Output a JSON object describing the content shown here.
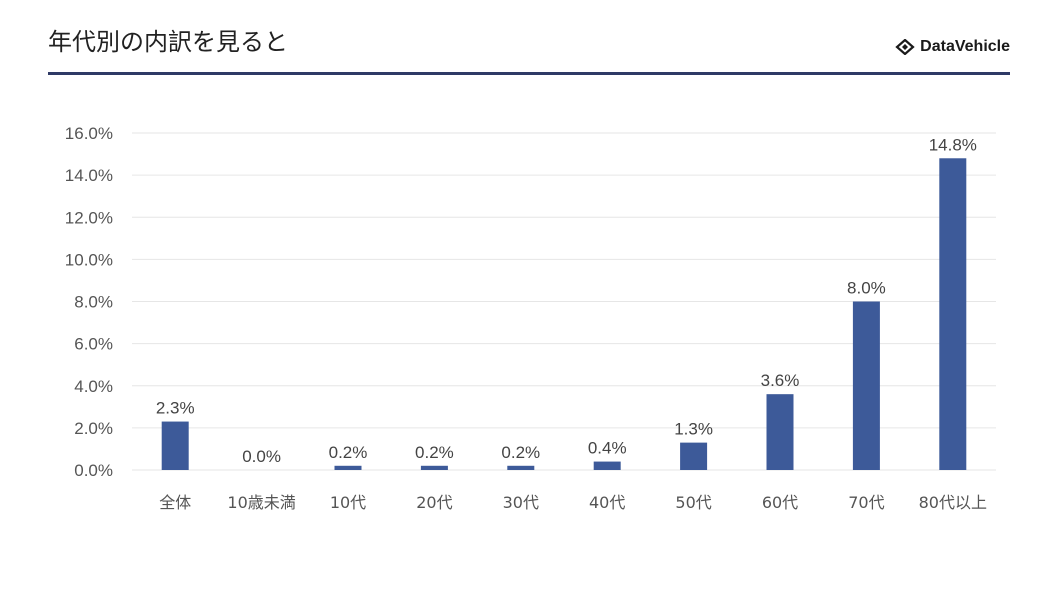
{
  "header": {
    "title": "年代別の内訳を見ると",
    "brand_name": "DataVehicle",
    "brand_icon": "diamond-logo-icon",
    "accent_color": "#2f3a66"
  },
  "chart_data": {
    "type": "bar",
    "title": "",
    "xlabel": "",
    "ylabel": "",
    "categories": [
      "全体",
      "10歳未満",
      "10代",
      "20代",
      "30代",
      "40代",
      "50代",
      "60代",
      "70代",
      "80代以上"
    ],
    "values": [
      2.3,
      0.0,
      0.2,
      0.2,
      0.2,
      0.4,
      1.3,
      3.6,
      8.0,
      14.8
    ],
    "value_labels": [
      "2.3%",
      "0.0%",
      "0.2%",
      "0.2%",
      "0.2%",
      "0.4%",
      "1.3%",
      "3.6%",
      "8.0%",
      "14.8%"
    ],
    "y_ticks": [
      0,
      2,
      4,
      6,
      8,
      10,
      12,
      14,
      16
    ],
    "y_tick_labels": [
      "0.0%",
      "2.0%",
      "4.0%",
      "6.0%",
      "8.0%",
      "10.0%",
      "12.0%",
      "14.0%",
      "16.0%"
    ],
    "ylim": [
      0,
      16
    ],
    "grid": true,
    "bar_color": "#3d5a99",
    "grid_color": "#e6e6e6"
  }
}
